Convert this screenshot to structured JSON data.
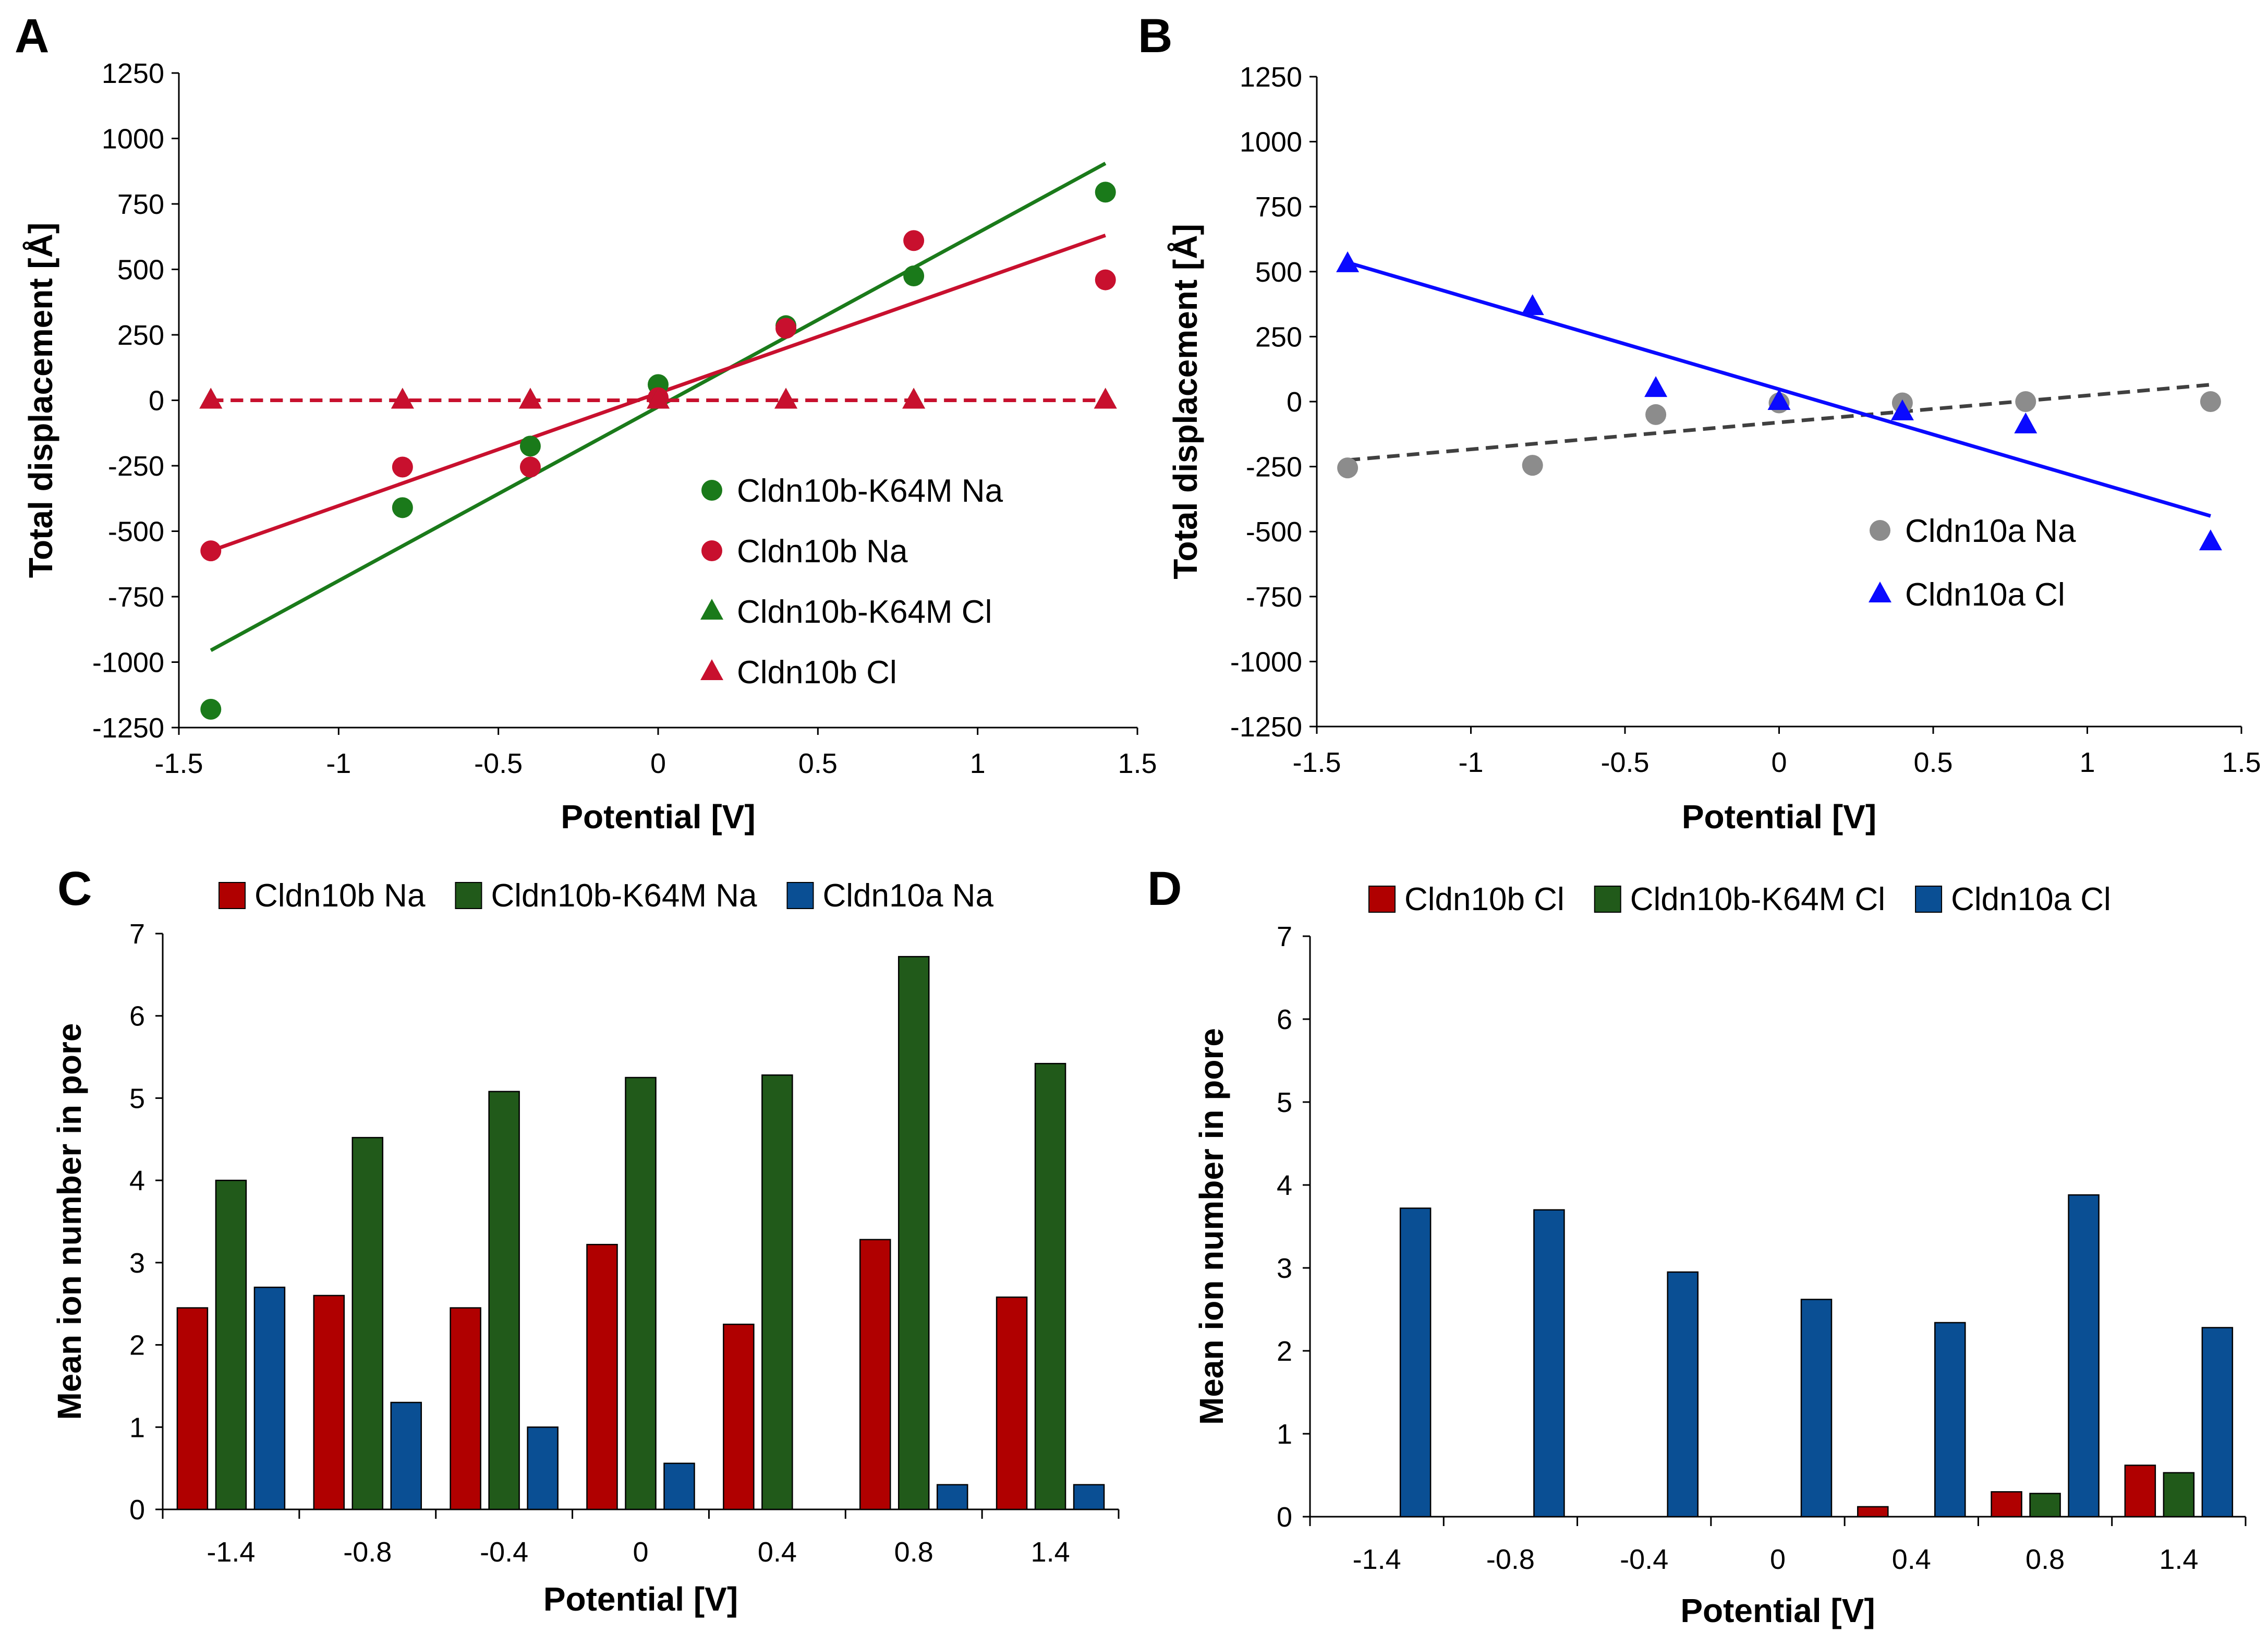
{
  "chart_data": [
    {
      "panel": "A",
      "type": "scatter",
      "title": "",
      "xlabel": "Potential [V]",
      "ylabel": "Total displacement [Å]",
      "xlim": [
        -1.5,
        1.5
      ],
      "ylim": [
        -1250,
        1250
      ],
      "xticks": [
        -1.5,
        -1,
        -0.5,
        0,
        0.5,
        1,
        1.5
      ],
      "xtick_labels": [
        "-1.5",
        "-1",
        "-0.5",
        "0",
        "0.5",
        "1",
        "1.5"
      ],
      "yticks": [
        -1250,
        -1000,
        -750,
        -500,
        -250,
        0,
        250,
        500,
        750,
        1000,
        1250
      ],
      "ytick_labels": [
        "-1250",
        "-1000",
        "-750",
        "-500",
        "-250",
        "0",
        "250",
        "500",
        "750",
        "1000",
        "1250"
      ],
      "legend_position": "lower-right",
      "series": [
        {
          "name": "Cldn10b-K64M Na",
          "marker": "circle",
          "color": "#1a7a1a",
          "x": [
            -1.4,
            -0.8,
            -0.4,
            0,
            0.4,
            0.8,
            1.4
          ],
          "y": [
            -1180,
            -410,
            -175,
            60,
            285,
            475,
            795
          ],
          "fit": {
            "x": [
              -1.4,
              1.4
            ],
            "y": [
              -955,
              905
            ],
            "dash": false
          }
        },
        {
          "name": "Cldn10b Na",
          "marker": "circle",
          "color": "#c8102e",
          "x": [
            -1.4,
            -0.8,
            -0.4,
            0,
            0.4,
            0.8,
            1.4
          ],
          "y": [
            -575,
            -255,
            -255,
            10,
            275,
            610,
            460
          ],
          "fit": {
            "x": [
              -1.4,
              1.4
            ],
            "y": [
              -575,
              630
            ],
            "dash": false
          }
        },
        {
          "name": "Cldn10b-K64M Cl",
          "marker": "triangle",
          "color": "#1a7a1a",
          "x": [
            -1.4,
            -0.8,
            -0.4,
            0,
            0.4,
            0.8,
            1.4
          ],
          "y": [
            0,
            0,
            0,
            0,
            0,
            0,
            0
          ],
          "fit": {
            "x": [
              -1.4,
              1.4
            ],
            "y": [
              0,
              0
            ],
            "dash": true
          }
        },
        {
          "name": "Cldn10b Cl",
          "marker": "triangle",
          "color": "#c8102e",
          "x": [
            -1.4,
            -0.8,
            -0.4,
            0,
            0.4,
            0.8,
            1.4
          ],
          "y": [
            0,
            0,
            0,
            0,
            0,
            0,
            0
          ],
          "fit": {
            "x": [
              -1.4,
              1.4
            ],
            "y": [
              0,
              0
            ],
            "dash": true
          }
        }
      ]
    },
    {
      "panel": "B",
      "type": "scatter",
      "title": "",
      "xlabel": "Potential [V]",
      "ylabel": "Total displacement [Å]",
      "xlim": [
        -1.5,
        1.5
      ],
      "ylim": [
        -1250,
        1250
      ],
      "xticks": [
        -1.5,
        -1,
        -0.5,
        0,
        0.5,
        1,
        1.5
      ],
      "xtick_labels": [
        "-1.5",
        "-1",
        "-0.5",
        "0",
        "0.5",
        "1",
        "1.5"
      ],
      "yticks": [
        -1250,
        -1000,
        -750,
        -500,
        -250,
        0,
        250,
        500,
        750,
        1000,
        1250
      ],
      "ytick_labels": [
        "-1250",
        "-1000",
        "-750",
        "-500",
        "-250",
        "0",
        "250",
        "500",
        "750",
        "1000",
        "1250"
      ],
      "legend_position": "lower-right",
      "series": [
        {
          "name": "Cldn10a Na",
          "marker": "circle",
          "color": "#8c8c8c",
          "x": [
            -1.4,
            -0.8,
            -0.4,
            0,
            0.4,
            0.8,
            1.4
          ],
          "y": [
            -255,
            -245,
            -50,
            -5,
            -5,
            0,
            0
          ],
          "fit": {
            "x": [
              -1.4,
              1.4
            ],
            "y": [
              -225,
              65
            ],
            "dash": true,
            "color": "#404040"
          }
        },
        {
          "name": "Cldn10a Cl",
          "marker": "triangle",
          "color": "#0a0aff",
          "x": [
            -1.4,
            -0.8,
            -0.4,
            0,
            0.4,
            0.8,
            1.4
          ],
          "y": [
            530,
            365,
            50,
            0,
            -40,
            -90,
            -540
          ],
          "fit": {
            "x": [
              -1.4,
              1.4
            ],
            "y": [
              535,
              -440
            ],
            "dash": false,
            "color": "#0a0aff"
          }
        }
      ]
    },
    {
      "panel": "C",
      "type": "bar",
      "title": "",
      "xlabel": "Potential [V]",
      "ylabel": "Mean ion number in pore",
      "ylim": [
        0,
        7
      ],
      "yticks": [
        0,
        1,
        2,
        3,
        4,
        5,
        6,
        7
      ],
      "ytick_labels": [
        "0",
        "1",
        "2",
        "3",
        "4",
        "5",
        "6",
        "7"
      ],
      "categories": [
        "-1.4",
        "-0.8",
        "-0.4",
        "0",
        "0.4",
        "0.8",
        "1.4"
      ],
      "legend_position": "top",
      "series": [
        {
          "name": "Cldn10b Na",
          "color": "#b00000",
          "values": [
            2.45,
            2.6,
            2.45,
            3.22,
            2.25,
            3.28,
            2.58
          ]
        },
        {
          "name": "Cldn10b-K64M Na",
          "color": "#215a1a",
          "values": [
            4.0,
            4.52,
            5.08,
            5.25,
            5.28,
            6.72,
            5.42
          ]
        },
        {
          "name": "Cldn10a Na",
          "color": "#0a4f94",
          "values": [
            2.7,
            1.3,
            1.0,
            0.56,
            0,
            0.3,
            0.3
          ]
        }
      ]
    },
    {
      "panel": "D",
      "type": "bar",
      "title": "",
      "xlabel": "Potential [V]",
      "ylabel": "Mean ion number in pore",
      "ylim": [
        0,
        7
      ],
      "yticks": [
        0,
        1,
        2,
        3,
        4,
        5,
        6,
        7
      ],
      "ytick_labels": [
        "0",
        "1",
        "2",
        "3",
        "4",
        "5",
        "6",
        "7"
      ],
      "categories": [
        "-1.4",
        "-0.8",
        "-0.4",
        "0",
        "0.4",
        "0.8",
        "1.4"
      ],
      "legend_position": "top",
      "series": [
        {
          "name": "Cldn10b Cl",
          "color": "#b00000",
          "values": [
            0,
            0,
            0,
            0,
            0.12,
            0.3,
            0.62
          ]
        },
        {
          "name": "Cldn10b-K64M Cl",
          "color": "#215a1a",
          "values": [
            0,
            0,
            0,
            0,
            0,
            0.28,
            0.53
          ]
        },
        {
          "name": "Cldn10a Cl",
          "color": "#0a4f94",
          "values": [
            3.72,
            3.7,
            2.95,
            2.62,
            2.34,
            3.88,
            2.28
          ]
        }
      ]
    }
  ]
}
